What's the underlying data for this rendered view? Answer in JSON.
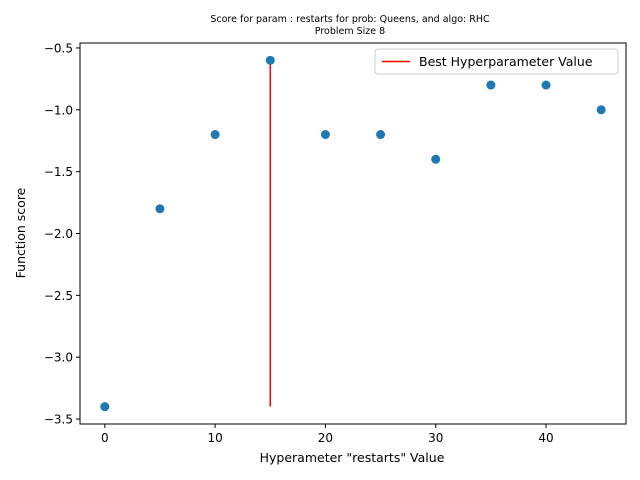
{
  "chart_data": {
    "type": "scatter",
    "title": "Score for param : restarts for prob: Queens, and algo: RHC",
    "subtitle": "Problem Size 8",
    "xlabel": "Hyperameter \"restarts\" Value",
    "ylabel": "Function score",
    "xlim": [
      -2.25,
      47.25
    ],
    "ylim": [
      -3.54,
      -0.46
    ],
    "x_ticks": [
      0,
      10,
      20,
      30,
      40
    ],
    "y_ticks": [
      -3.5,
      -3.0,
      -2.5,
      -2.0,
      -1.5,
      -1.0,
      -0.5
    ],
    "x_tick_labels": [
      "0",
      "10",
      "20",
      "30",
      "40"
    ],
    "y_tick_labels": [
      "−3.5",
      "−3.0",
      "−2.5",
      "−2.0",
      "−1.5",
      "−1.0",
      "−0.5"
    ],
    "grid": false,
    "points": [
      {
        "x": 0,
        "y": -3.4
      },
      {
        "x": 5,
        "y": -1.8
      },
      {
        "x": 10,
        "y": -1.2
      },
      {
        "x": 15,
        "y": -0.6
      },
      {
        "x": 20,
        "y": -1.2
      },
      {
        "x": 25,
        "y": -1.2
      },
      {
        "x": 30,
        "y": -1.4
      },
      {
        "x": 35,
        "y": -0.8
      },
      {
        "x": 40,
        "y": -0.8
      },
      {
        "x": 45,
        "y": -1.0
      }
    ],
    "best_line": {
      "x": 15,
      "y_from": -3.4,
      "y_to": -0.6
    },
    "legend": {
      "placement": "top-right",
      "label": "Best Hyperparameter Value"
    },
    "colors": {
      "points": "#1f77b4",
      "best_line": "#ff0000",
      "axes": "#000000"
    }
  }
}
